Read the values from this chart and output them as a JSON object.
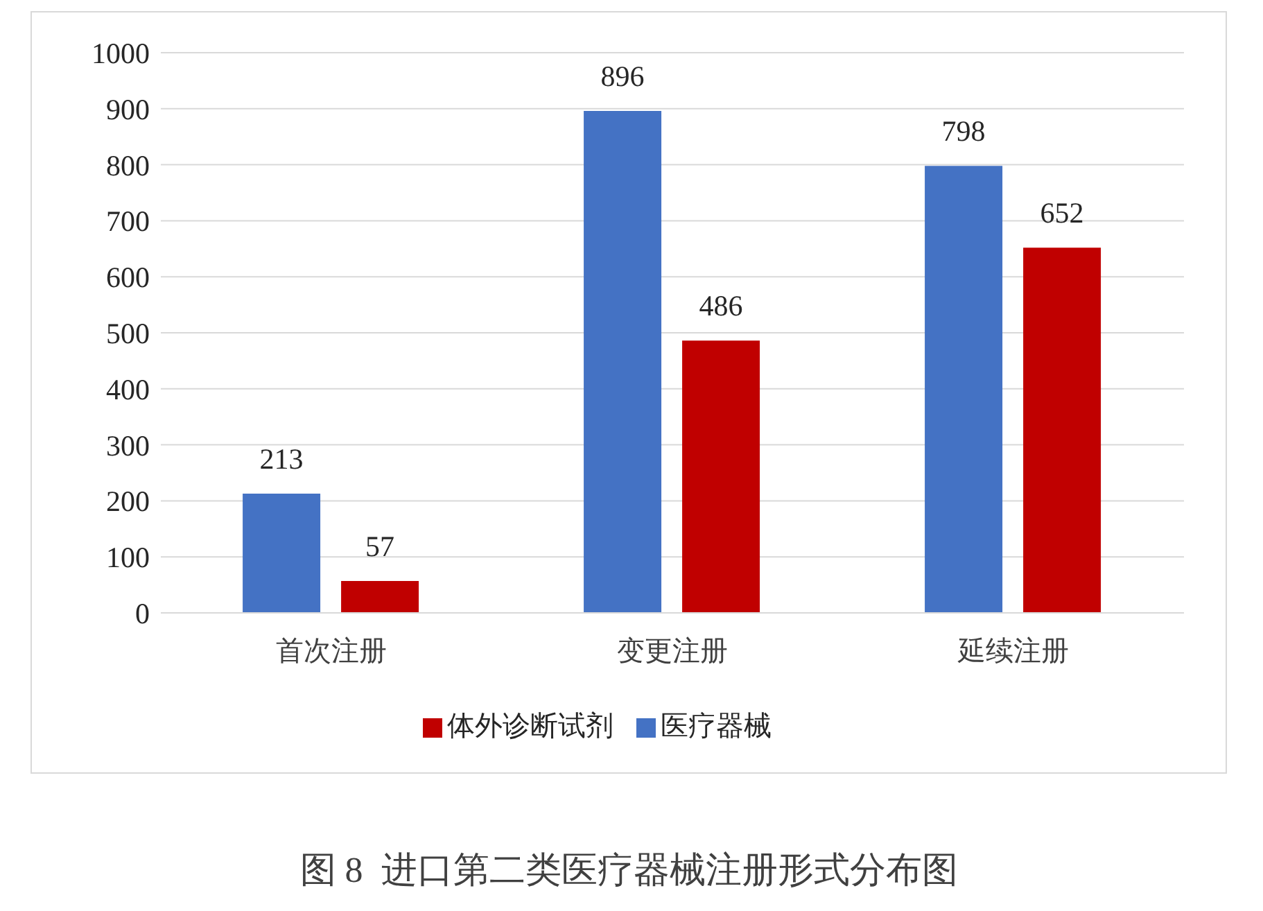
{
  "chart_data": {
    "type": "bar",
    "title": "图 8  进口第二类医疗器械注册形式分布图",
    "categories": [
      "首次注册",
      "变更注册",
      "延续注册"
    ],
    "series": [
      {
        "name": "医疗器械",
        "color": "#4472c4",
        "values": [
          213,
          896,
          798
        ]
      },
      {
        "name": "体外诊断试剂",
        "color": "#c00000",
        "values": [
          57,
          486,
          652
        ]
      }
    ],
    "ylim": [
      0,
      1000
    ],
    "yticks": [
      0,
      100,
      200,
      300,
      400,
      500,
      600,
      700,
      800,
      900,
      1000
    ],
    "grid": "y",
    "legend": "bottom",
    "data_labels": true
  }
}
